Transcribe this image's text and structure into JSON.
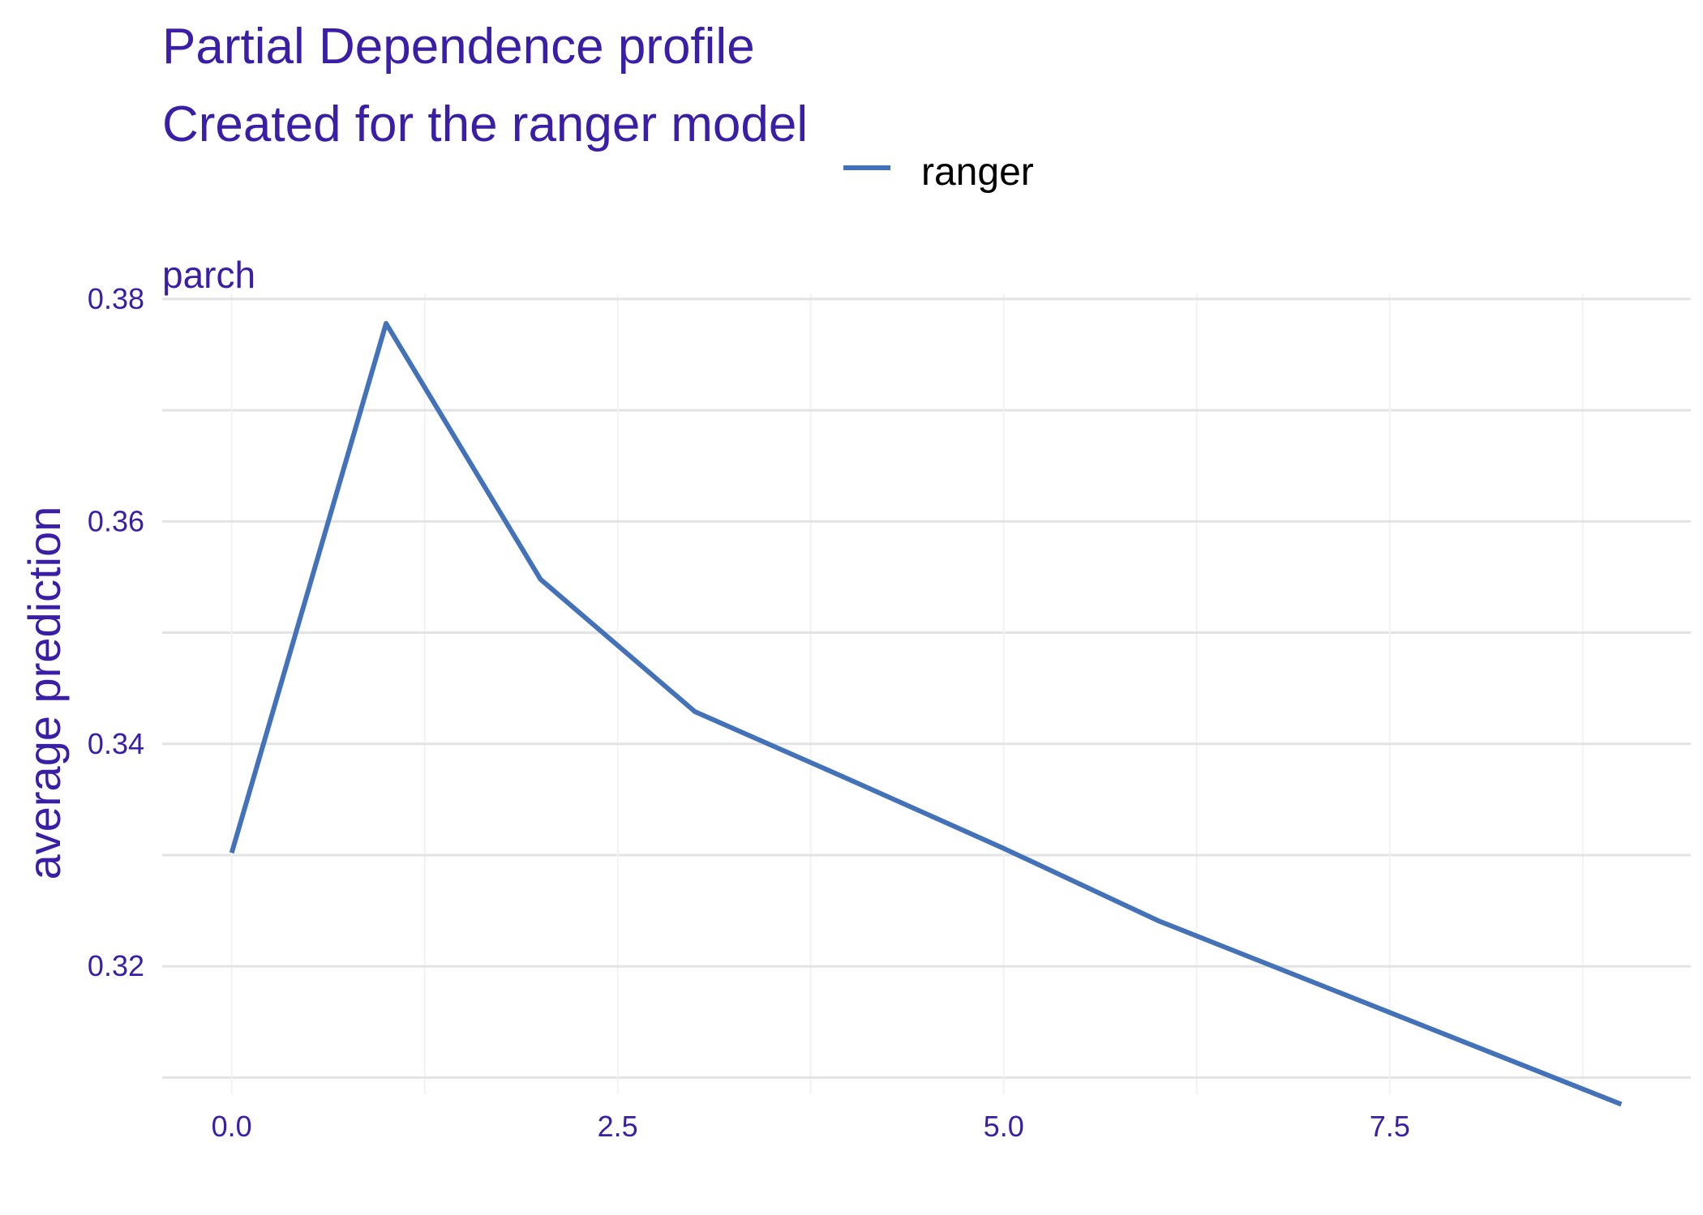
{
  "colors": {
    "title": "#3a1fa6",
    "series": "#4472b8",
    "grid_major": "#e3e3e3",
    "grid_minor": "#f2f2f2"
  },
  "chart_data": {
    "type": "line",
    "title": "Partial Dependence profile",
    "subtitle": "Created for the ranger model",
    "facet_label": "parch",
    "xlabel": "",
    "ylabel": "average prediction",
    "xlim": [
      -0.45,
      9.45
    ],
    "ylim": [
      0.3085,
      0.3805
    ],
    "x_ticks": [
      0,
      2.5,
      5,
      7.5
    ],
    "x_tick_labels": [
      "0.0",
      "2.5",
      "5.0",
      "7.5"
    ],
    "y_ticks": [
      0.32,
      0.34,
      0.36,
      0.38
    ],
    "y_tick_labels": [
      "0.32",
      "0.34",
      "0.36",
      "0.38"
    ],
    "y_minor_ticks": [
      0.31,
      0.33,
      0.35,
      0.37
    ],
    "x_minor_ticks": [
      1.25,
      3.75,
      6.25,
      8.75
    ],
    "grid": true,
    "legend_position": "top",
    "series": [
      {
        "name": "ranger",
        "x": [
          0,
          1,
          2,
          3,
          4,
          5,
          6,
          9
        ],
        "y": [
          0.3302,
          0.3778,
          0.3548,
          0.3429,
          0.3368,
          0.3306,
          0.3241,
          0.3076
        ]
      }
    ]
  }
}
